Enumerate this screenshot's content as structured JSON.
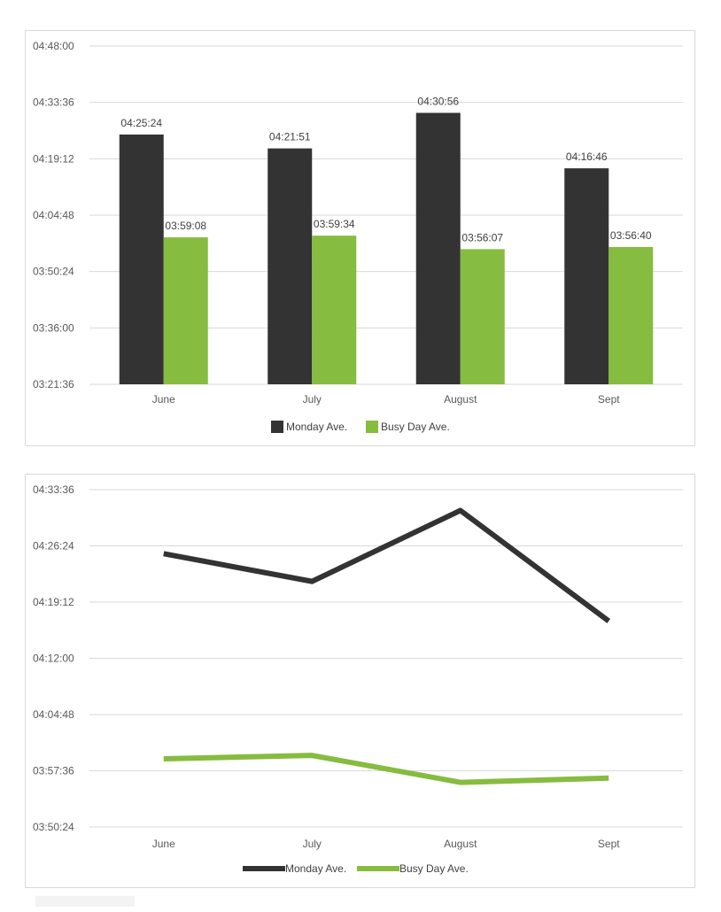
{
  "colors": {
    "monday": "#333333",
    "busy": "#86bc3f",
    "grid": "#d9d9d9",
    "text": "#595959"
  },
  "chart_data": [
    {
      "type": "bar",
      "categories": [
        "June",
        "July",
        "August",
        "Sept"
      ],
      "y_ticks": [
        "03:21:36",
        "03:36:00",
        "03:50:24",
        "04:04:48",
        "04:19:12",
        "04:33:36",
        "04:48:00"
      ],
      "ylim": [
        "03:21:36",
        "04:48:00"
      ],
      "grid": true,
      "legend_position": "bottom",
      "series": [
        {
          "name": "Monday Ave.",
          "values": [
            "04:25:24",
            "04:21:51",
            "04:30:56",
            "04:16:46"
          ],
          "labels": [
            "04:25:24",
            "04:21:51",
            "04:30:56",
            "04:16:46"
          ]
        },
        {
          "name": "Busy Day Ave.",
          "values": [
            "03:59:08",
            "03:59:34",
            "03:56:07",
            "03:56:40"
          ],
          "labels": [
            "03:59:08",
            "03:59:34",
            "03:56:07",
            "03:56:40"
          ]
        }
      ]
    },
    {
      "type": "line",
      "categories": [
        "June",
        "July",
        "August",
        "Sept"
      ],
      "y_ticks": [
        "03:50:24",
        "03:57:36",
        "04:04:48",
        "04:12:00",
        "04:19:12",
        "04:26:24",
        "04:33:36"
      ],
      "ylim": [
        "03:50:24",
        "04:33:36"
      ],
      "grid": true,
      "legend_position": "bottom",
      "series": [
        {
          "name": "Monday Ave.",
          "values": [
            "04:25:24",
            "04:21:51",
            "04:30:56",
            "04:16:46"
          ]
        },
        {
          "name": "Busy Day Ave.",
          "values": [
            "03:59:08",
            "03:59:34",
            "03:56:07",
            "03:56:40"
          ]
        }
      ]
    }
  ]
}
